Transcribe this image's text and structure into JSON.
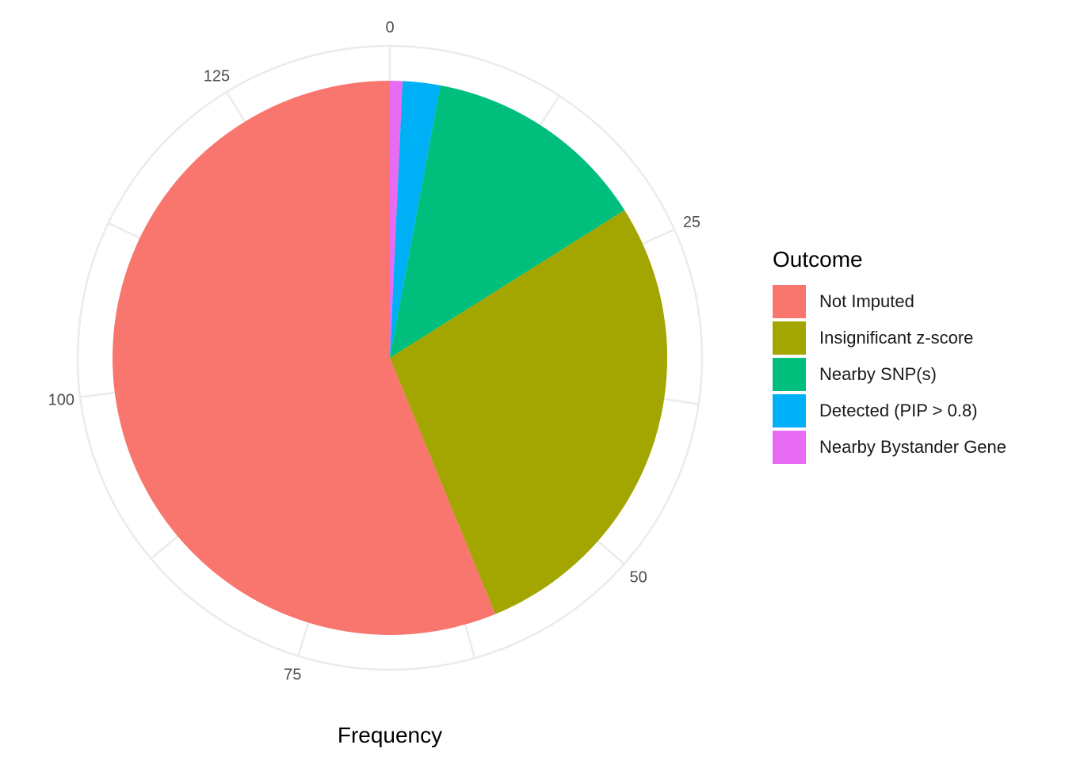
{
  "chart_data": {
    "type": "pie",
    "title": "",
    "xlabel": "Frequency",
    "legend_title": "Outcome",
    "legend_position": "right",
    "theta_ticks": [
      "0",
      "25",
      "50",
      "75",
      "100",
      "125"
    ],
    "theta_tick_values": [
      0,
      25,
      50,
      75,
      100,
      125
    ],
    "theta_range": [
      0,
      137
    ],
    "grid": true,
    "slices": [
      {
        "label": "Nearby Bystander Gene",
        "value": 1,
        "color": "#E76BF3"
      },
      {
        "label": "Detected (PIP > 0.8)",
        "value": 3,
        "color": "#00B0F6"
      },
      {
        "label": "Nearby SNP(s)",
        "value": 18,
        "color": "#00BF7D"
      },
      {
        "label": "Insignificant z-score",
        "value": 38,
        "color": "#A3A500"
      },
      {
        "label": "Not Imputed",
        "value": 77,
        "color": "#F8766D"
      }
    ],
    "legend_order": [
      "Not Imputed",
      "Insignificant z-score",
      "Nearby SNP(s)",
      "Detected (PIP > 0.8)",
      "Nearby Bystander Gene"
    ]
  }
}
